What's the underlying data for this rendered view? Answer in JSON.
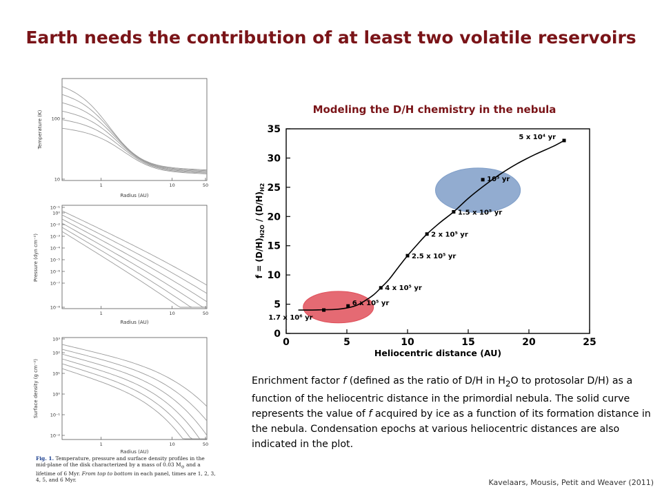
{
  "slide": {
    "title": "Earth needs the contribution of at least two volatile reservoirs",
    "credit": "Kavelaars, Mousis, Petit and Weaver (2011)"
  },
  "caption": {
    "p1": "Enrichment factor ",
    "f1": "f",
    "p2": " (defined as the ratio of D/H in H",
    "sub": "2",
    "p3": "O to protosolar D/H) as a function of the heliocentric distance in the primordial nebula. The solid curve represents the value of ",
    "f2": "f",
    "p4": " acquired by ice as a function of its formation distance in the nebula. Condensation epochs at various heliocentric distances are also indicated in the plot."
  },
  "fig_caption": {
    "label": "Fig. 1.",
    "text1": " Temperature, pressure and surface density profiles in the mid-plane of the disk characterized by a mass of 0.03 M",
    "text2": " and a lifetime of 6 Myr. ",
    "italic": "From top to bottom",
    "text3": " in each panel, times are 1, 2, 3, 4, 5, and 6 Myr."
  },
  "colors": {
    "title": "#7a1418",
    "red_ellipse": "#e0505a",
    "blue_ellipse": "#7f9ec8",
    "curve": "#000000",
    "panel_lines": "#9a9a9a"
  },
  "chart_data": [
    {
      "type": "line",
      "title": "Modeling the D/H chemistry in the nebula",
      "xlabel": "Heliocentric distance (AU)",
      "ylabel": "f = (D/H)H2O / (D/H)H2",
      "xlim": [
        0,
        25
      ],
      "ylim": [
        0,
        35
      ],
      "xticks": [
        "0",
        "5",
        "10",
        "15",
        "20",
        "25"
      ],
      "yticks": [
        "0",
        "5",
        "10",
        "15",
        "20",
        "25",
        "30",
        "35"
      ],
      "curve": {
        "x": [
          1.0,
          2.0,
          3.0,
          4.0,
          5.0,
          5.8,
          6.5,
          7.2,
          7.8,
          8.5,
          9.2,
          10.0,
          10.8,
          11.6,
          12.7,
          13.8,
          15.0,
          16.2,
          17.6,
          19.0,
          20.5,
          22.0,
          22.9
        ],
        "y": [
          4.0,
          4.0,
          4.05,
          4.1,
          4.35,
          4.8,
          5.6,
          6.6,
          7.8,
          9.3,
          11.2,
          13.3,
          15.2,
          17.0,
          19.0,
          20.8,
          23.1,
          25.1,
          27.2,
          29.0,
          30.6,
          32.0,
          33.0
        ]
      },
      "epochs": [
        {
          "x": 3.1,
          "y": 4.0,
          "label": "1.7 x 10⁶ yr"
        },
        {
          "x": 5.1,
          "y": 4.7,
          "label": "6 x 10⁵ yr"
        },
        {
          "x": 7.8,
          "y": 7.8,
          "label": "4 x 10⁵ yr"
        },
        {
          "x": 10.0,
          "y": 13.3,
          "label": "2.5 x 10⁵ yr"
        },
        {
          "x": 11.6,
          "y": 17.0,
          "label": "2 x 10⁵ yr"
        },
        {
          "x": 13.8,
          "y": 20.8,
          "label": "1.5 x 10⁵ yr"
        },
        {
          "x": 16.2,
          "y": 26.3,
          "label": "10⁵ yr"
        },
        {
          "x": 22.9,
          "y": 33.0,
          "label": "5 x 10⁴ yr"
        }
      ],
      "regions": [
        {
          "name": "red-region",
          "cx": 4.3,
          "cy": 4.5,
          "rx": 2.9,
          "ry": 2.7,
          "color": "#e0505a"
        },
        {
          "name": "blue-region",
          "cx": 15.8,
          "cy": 24.5,
          "rx": 3.5,
          "ry": 3.8,
          "color": "#7f9ec8"
        }
      ]
    },
    {
      "type": "line",
      "scale": "log-log",
      "xlabel": "Radius (AU)",
      "ylabel": "Temperature (K)",
      "xticks": [
        "1",
        "10",
        "50"
      ],
      "yticks": [
        "10",
        "100"
      ],
      "series_count": 6
    },
    {
      "type": "line",
      "scale": "log-log",
      "xlabel": "Radius (AU)",
      "ylabel": "Pressure (dyn cm⁻²)",
      "xticks": [
        "1",
        "10",
        "50"
      ],
      "yticks": [
        "10⁻¹",
        "10⁰",
        "10⁻²",
        "10⁻³",
        "10⁻⁴",
        "10⁻⁵",
        "10⁻⁶",
        "10⁻⁷",
        "10⁻⁸"
      ],
      "series_count": 6
    },
    {
      "type": "line",
      "scale": "log-log",
      "xlabel": "Radius (AU)",
      "ylabel": "Surface density (g cm⁻²)",
      "xticks": [
        "1",
        "10",
        "50"
      ],
      "yticks": [
        "10³",
        "10²",
        "10¹",
        "10⁰",
        "10⁻¹",
        "10⁻²"
      ],
      "series_count": 6
    }
  ]
}
